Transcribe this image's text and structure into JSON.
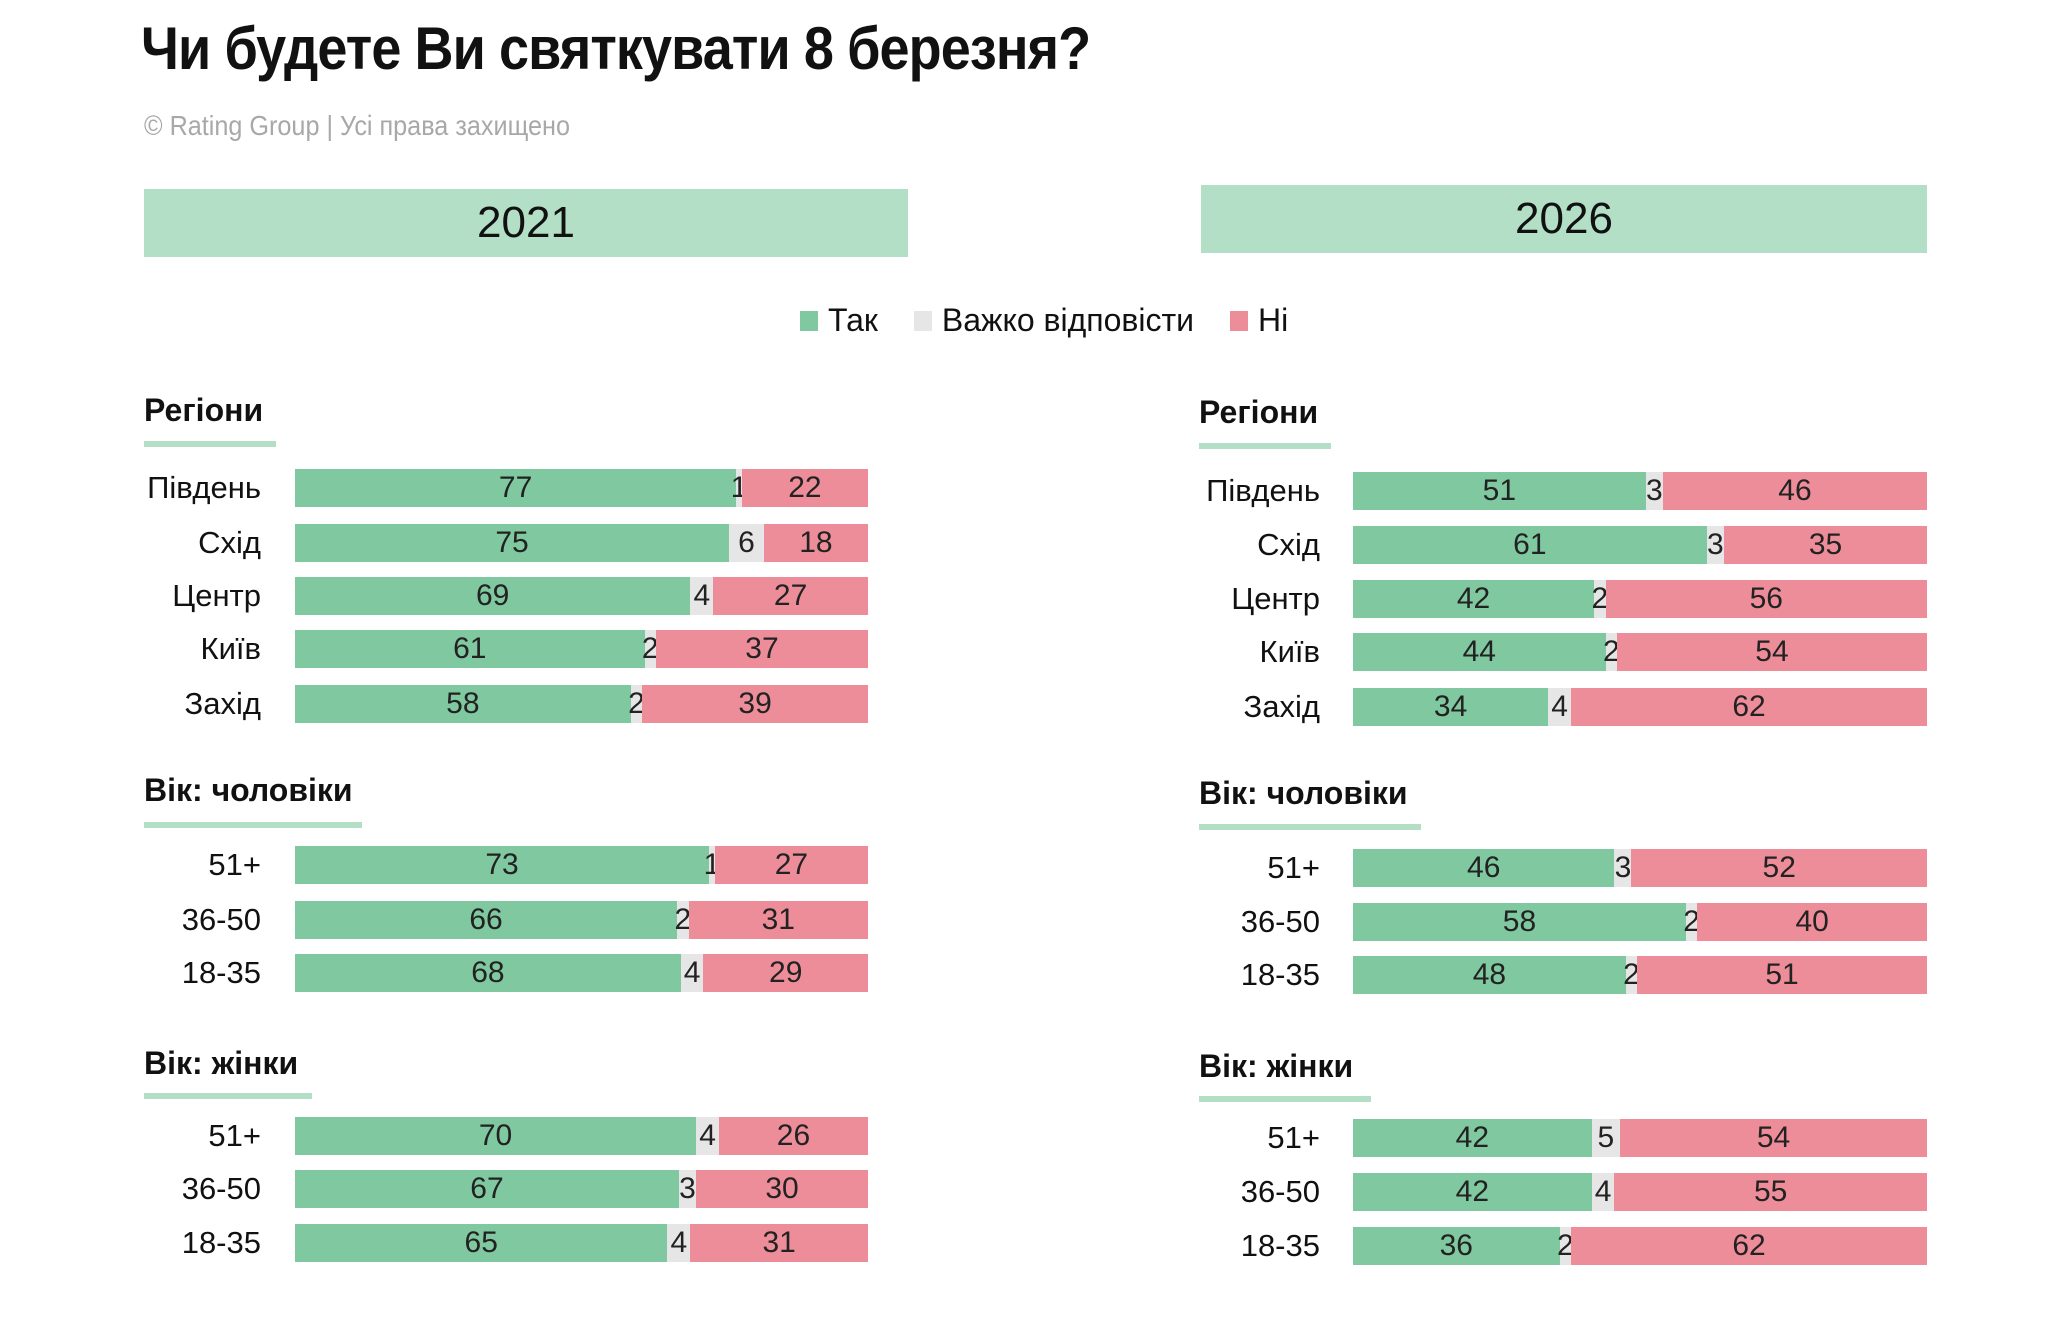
{
  "title": "Чи будете Ви святкувати 8 березня?",
  "subtitle": "© Rating Group | Усі права захищено",
  "colors": {
    "yes": "#7fc8a0",
    "hard": "#e6e6e6",
    "no": "#ee8d9a",
    "header": "#b3dfc7"
  },
  "legend": [
    {
      "label": "Так",
      "color": "#7fc8a0"
    },
    {
      "label": "Важко відповісти",
      "color": "#e6e6e6"
    },
    {
      "label": "Ні",
      "color": "#ee8d9a"
    }
  ],
  "chart_data": [
    {
      "type": "bar",
      "stacked": true,
      "orientation": "horizontal",
      "title": "2021",
      "series_names": [
        "Так",
        "Важко відповісти",
        "Ні"
      ],
      "sections": [
        {
          "title": "Регіони",
          "rows": [
            {
              "label": "Південь",
              "values": [
                77,
                1,
                22
              ]
            },
            {
              "label": "Схід",
              "values": [
                75,
                6,
                18
              ]
            },
            {
              "label": "Центр",
              "values": [
                69,
                4,
                27
              ]
            },
            {
              "label": "Київ",
              "values": [
                61,
                2,
                37
              ]
            },
            {
              "label": "Захід",
              "values": [
                58,
                2,
                39
              ]
            }
          ]
        },
        {
          "title": "Вік: чоловіки",
          "rows": [
            {
              "label": "51+",
              "values": [
                73,
                1,
                27
              ]
            },
            {
              "label": "36-50",
              "values": [
                66,
                2,
                31
              ]
            },
            {
              "label": "18-35",
              "values": [
                68,
                4,
                29
              ]
            }
          ]
        },
        {
          "title": "Вік: жінки",
          "rows": [
            {
              "label": "51+",
              "values": [
                70,
                4,
                26
              ]
            },
            {
              "label": "36-50",
              "values": [
                67,
                3,
                30
              ]
            },
            {
              "label": "18-35",
              "values": [
                65,
                4,
                31
              ]
            }
          ]
        }
      ]
    },
    {
      "type": "bar",
      "stacked": true,
      "orientation": "horizontal",
      "title": "2026",
      "series_names": [
        "Так",
        "Важко відповісти",
        "Ні"
      ],
      "sections": [
        {
          "title": "Регіони",
          "rows": [
            {
              "label": "Південь",
              "values": [
                51,
                3,
                46
              ]
            },
            {
              "label": "Схід",
              "values": [
                61,
                3,
                35
              ]
            },
            {
              "label": "Центр",
              "values": [
                42,
                2,
                56
              ]
            },
            {
              "label": "Київ",
              "values": [
                44,
                2,
                54
              ]
            },
            {
              "label": "Захід",
              "values": [
                34,
                4,
                62
              ]
            }
          ]
        },
        {
          "title": "Вік: чоловіки",
          "rows": [
            {
              "label": "51+",
              "values": [
                46,
                3,
                52
              ]
            },
            {
              "label": "36-50",
              "values": [
                58,
                2,
                40
              ]
            },
            {
              "label": "18-35",
              "values": [
                48,
                2,
                51
              ]
            }
          ]
        },
        {
          "title": "Вік: жінки",
          "rows": [
            {
              "label": "51+",
              "values": [
                42,
                5,
                54
              ]
            },
            {
              "label": "36-50",
              "values": [
                42,
                4,
                55
              ]
            },
            {
              "label": "18-35",
              "values": [
                36,
                2,
                62
              ]
            }
          ]
        }
      ]
    }
  ]
}
